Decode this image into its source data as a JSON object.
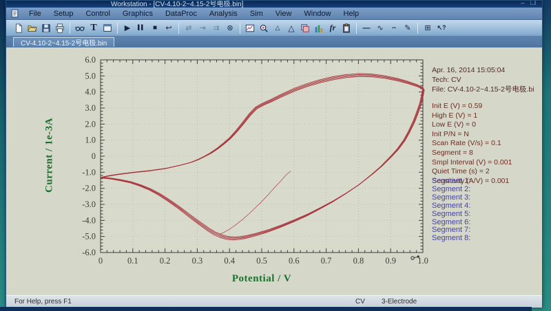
{
  "window": {
    "title_visible": "Workstation - [CV-4.10-2~4.15-2号电极.bin]",
    "controls": "– ❐"
  },
  "menu_bar": {
    "items": [
      "File",
      "Setup",
      "Control",
      "Graphics",
      "DataProc",
      "Analysis",
      "Sim",
      "View",
      "Window",
      "Help"
    ]
  },
  "toolbar": {
    "icons": [
      {
        "name": "new-file-icon",
        "svg": "new"
      },
      {
        "name": "open-file-icon",
        "svg": "open"
      },
      {
        "name": "save-icon",
        "svg": "save"
      },
      {
        "name": "print-icon",
        "svg": "print"
      },
      {
        "sep": true
      },
      {
        "name": "data-view-glasses-icon",
        "svg": "glasses"
      },
      {
        "name": "text-annotation-icon",
        "glyph": "T"
      },
      {
        "name": "window-layout-icon",
        "svg": "layout"
      },
      {
        "sep": true
      },
      {
        "name": "run-experiment-icon",
        "glyph": "▶"
      },
      {
        "name": "pause-icon",
        "glyph": "▌▌"
      },
      {
        "name": "stop-icon",
        "glyph": "■"
      },
      {
        "name": "reverse-scan-icon",
        "glyph": "↩"
      },
      {
        "sep": true
      },
      {
        "name": "step-swap-icon",
        "glyph": "⇄",
        "disabled": true
      },
      {
        "name": "step-to-end-icon",
        "glyph": "⇥",
        "disabled": true
      },
      {
        "name": "step-repeat-icon",
        "glyph": "⇉",
        "disabled": true
      },
      {
        "name": "rotate-wheel-icon",
        "glyph": "⊛"
      },
      {
        "sep": true
      },
      {
        "name": "zoom-graph-icon",
        "svg": "zoomchart"
      },
      {
        "name": "zoom-in-icon",
        "svg": "mag"
      },
      {
        "name": "peak-definition-icon",
        "glyph": "△"
      },
      {
        "name": "peak-definition-large-icon",
        "glyph": "△"
      },
      {
        "name": "overlay-plots-icon",
        "svg": "overlay"
      },
      {
        "name": "bar-graph-icon",
        "svg": "bars"
      },
      {
        "name": "fr-tool-icon",
        "glyph": "fr"
      },
      {
        "name": "copy-clipboard-icon",
        "svg": "clip"
      },
      {
        "sep": true
      },
      {
        "name": "line-tool-icon",
        "glyph": "—"
      },
      {
        "name": "sine-wave-icon",
        "glyph": "∿"
      },
      {
        "name": "curve-tool-icon",
        "glyph": "⌢"
      },
      {
        "name": "pen-tool-icon",
        "glyph": "✎"
      },
      {
        "sep": true
      },
      {
        "name": "data-grid-icon",
        "glyph": "⊞"
      },
      {
        "name": "context-help-icon",
        "glyph": "↖?"
      }
    ]
  },
  "tab": {
    "label": "CV-4.10-2~4.15-2号电极.bin"
  },
  "info_panel": {
    "header_lines": [
      "Apr. 16, 2014  15:05:04",
      "Tech: CV",
      "File: CV-4.10-2~4.15-2号电极.bi"
    ],
    "param_lines": [
      "Init E (V) = 0.59",
      "High E (V) = 1",
      "Low E (V) = 0",
      "Init P/N = N",
      "Scan Rate (V/s) = 0.1",
      "Segment = 8",
      "Smpl Interval (V) = 0.001",
      "Quiet Time (s) = 2",
      "Sensitivity (A/V) = 0.001"
    ],
    "segment_lines": [
      "Segment 1:",
      "Segment 2:",
      "Segment 3:",
      "Segment 4:",
      "Segment 5:",
      "Segment 6:",
      "Segment 7:",
      "Segment 8:"
    ]
  },
  "status_bar": {
    "help_text": "For Help, press F1",
    "mode": "CV",
    "electrode": "3-Electrode"
  },
  "colors": {
    "curve_red": "#a8343c",
    "axis_green": "#1e7030",
    "param_red": "#6e2a22",
    "segment_blue": "#4343a6",
    "plot_bg": "#d8dacb",
    "chrome_blue": "#7d9fc6"
  },
  "chart_data": {
    "type": "line",
    "title": "",
    "xlabel": "Potential / V",
    "ylabel": "Current / 1e-3A",
    "xlim": [
      0,
      1.0
    ],
    "ylim": [
      -6.0,
      6.0
    ],
    "grid": "dotted",
    "legend": "none",
    "x_tick_values": [
      0,
      0.1,
      0.2,
      0.3,
      0.4,
      0.5,
      0.6,
      0.7,
      0.8,
      0.9,
      1.0
    ],
    "x_tick_labels": [
      "0",
      "0.1",
      "0.2",
      "0.3",
      "0.4",
      "0.5",
      "0.6",
      "0.7",
      "0.8",
      "0.9",
      "1.0"
    ],
    "y_tick_values": [
      6,
      5,
      4,
      3,
      2,
      1,
      0,
      -1,
      -2,
      -3,
      -4,
      -5,
      -6
    ],
    "y_tick_labels": [
      "6.0",
      "5.0",
      "4.0",
      "3.0",
      "2.0",
      "1.0",
      "0",
      "-1.0",
      "-2.0",
      "-3.0",
      "-4.0",
      "-5.0",
      "-6.0"
    ],
    "line_color": "#a8343c",
    "cycles_drawn": 4,
    "series": [
      {
        "name": "cv_loop",
        "points": [
          [
            0.0,
            -1.35
          ],
          [
            0.02,
            -1.26
          ],
          [
            0.05,
            -1.16
          ],
          [
            0.1,
            -1.03
          ],
          [
            0.15,
            -0.92
          ],
          [
            0.2,
            -0.78
          ],
          [
            0.25,
            -0.55
          ],
          [
            0.28,
            -0.38
          ],
          [
            0.3,
            -0.22
          ],
          [
            0.32,
            -0.02
          ],
          [
            0.34,
            0.2
          ],
          [
            0.36,
            0.48
          ],
          [
            0.38,
            0.8
          ],
          [
            0.4,
            1.15
          ],
          [
            0.42,
            1.6
          ],
          [
            0.44,
            2.1
          ],
          [
            0.46,
            2.62
          ],
          [
            0.48,
            3.05
          ],
          [
            0.5,
            3.28
          ],
          [
            0.53,
            3.55
          ],
          [
            0.56,
            3.85
          ],
          [
            0.6,
            4.22
          ],
          [
            0.64,
            4.52
          ],
          [
            0.68,
            4.76
          ],
          [
            0.72,
            4.95
          ],
          [
            0.76,
            5.08
          ],
          [
            0.8,
            5.15
          ],
          [
            0.84,
            5.12
          ],
          [
            0.88,
            5.02
          ],
          [
            0.92,
            4.85
          ],
          [
            0.95,
            4.68
          ],
          [
            0.98,
            4.48
          ],
          [
            1.0,
            4.28
          ],
          [
            0.995,
            3.75
          ],
          [
            0.99,
            3.3
          ],
          [
            0.98,
            2.72
          ],
          [
            0.97,
            2.2
          ],
          [
            0.955,
            1.55
          ],
          [
            0.94,
            1.0
          ],
          [
            0.92,
            0.45
          ],
          [
            0.9,
            0.0
          ],
          [
            0.87,
            -0.62
          ],
          [
            0.84,
            -1.15
          ],
          [
            0.8,
            -1.8
          ],
          [
            0.76,
            -2.35
          ],
          [
            0.72,
            -2.85
          ],
          [
            0.68,
            -3.3
          ],
          [
            0.64,
            -3.72
          ],
          [
            0.6,
            -4.08
          ],
          [
            0.56,
            -4.42
          ],
          [
            0.52,
            -4.72
          ],
          [
            0.48,
            -4.97
          ],
          [
            0.45,
            -5.12
          ],
          [
            0.43,
            -5.19
          ],
          [
            0.41,
            -5.22
          ],
          [
            0.39,
            -5.18
          ],
          [
            0.37,
            -5.06
          ],
          [
            0.35,
            -4.88
          ],
          [
            0.33,
            -4.62
          ],
          [
            0.3,
            -4.18
          ],
          [
            0.27,
            -3.72
          ],
          [
            0.24,
            -3.25
          ],
          [
            0.21,
            -2.82
          ],
          [
            0.18,
            -2.42
          ],
          [
            0.15,
            -2.1
          ],
          [
            0.12,
            -1.85
          ],
          [
            0.09,
            -1.65
          ],
          [
            0.06,
            -1.52
          ],
          [
            0.03,
            -1.42
          ],
          [
            0.0,
            -1.35
          ]
        ]
      },
      {
        "name": "first_segment",
        "points": [
          [
            0.59,
            -0.92
          ],
          [
            0.575,
            -1.18
          ],
          [
            0.56,
            -1.52
          ],
          [
            0.54,
            -1.95
          ],
          [
            0.52,
            -2.4
          ],
          [
            0.5,
            -2.82
          ],
          [
            0.48,
            -3.22
          ],
          [
            0.46,
            -3.6
          ],
          [
            0.44,
            -3.95
          ],
          [
            0.42,
            -4.27
          ],
          [
            0.4,
            -4.55
          ],
          [
            0.385,
            -4.72
          ],
          [
            0.37,
            -4.86
          ]
        ]
      }
    ]
  }
}
